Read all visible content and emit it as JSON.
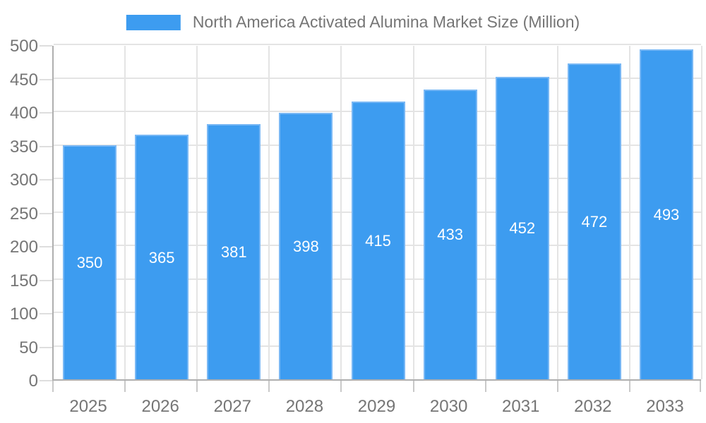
{
  "legend": {
    "label": "North America Activated Alumina Market Size (Million)"
  },
  "colors": {
    "bar": "#3d9cf0",
    "bar_edge": "#79b8f5",
    "value_label": "#ffffff",
    "axis_text": "#757575",
    "axis_line": "#afafaf",
    "gridline": "#e4e4e4",
    "y_tick": "#dedede",
    "x_tick": "#c9c9c9"
  },
  "chart_data": {
    "type": "bar",
    "title": "North America Activated Alumina Market Size (Million)",
    "categories": [
      "2025",
      "2026",
      "2027",
      "2028",
      "2029",
      "2030",
      "2031",
      "2032",
      "2033"
    ],
    "values": [
      350,
      365,
      381,
      398,
      415,
      433,
      452,
      472,
      493
    ],
    "xlabel": "",
    "ylabel": "",
    "ylim": [
      0,
      500
    ],
    "ytick_step": 50,
    "yticks": [
      0,
      50,
      100,
      150,
      200,
      250,
      300,
      350,
      400,
      450,
      500
    ],
    "grid": true,
    "legend_position": "top-center",
    "value_labels": "inside-center"
  }
}
